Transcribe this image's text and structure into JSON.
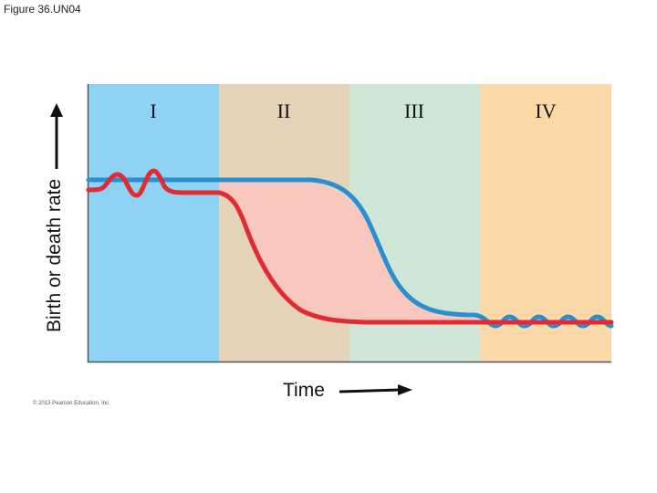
{
  "figure": {
    "caption": "Figure 36.UN04",
    "copyright": "© 2013 Pearson Education, Inc."
  },
  "axes": {
    "y_label": "Birth or death rate",
    "x_label": "Time"
  },
  "stages": [
    {
      "label": "I",
      "color": "#8fd3f4"
    },
    {
      "label": "II",
      "color": "#e5d3b9"
    },
    {
      "label": "III",
      "color": "#cfe6d6"
    },
    {
      "label": "IV",
      "color": "#fbd8a7"
    }
  ],
  "curves": {
    "birth_rate_color": "#2a8fd0",
    "death_rate_color": "#e22a33",
    "gap_fill_color": "#f8c8bf"
  }
}
